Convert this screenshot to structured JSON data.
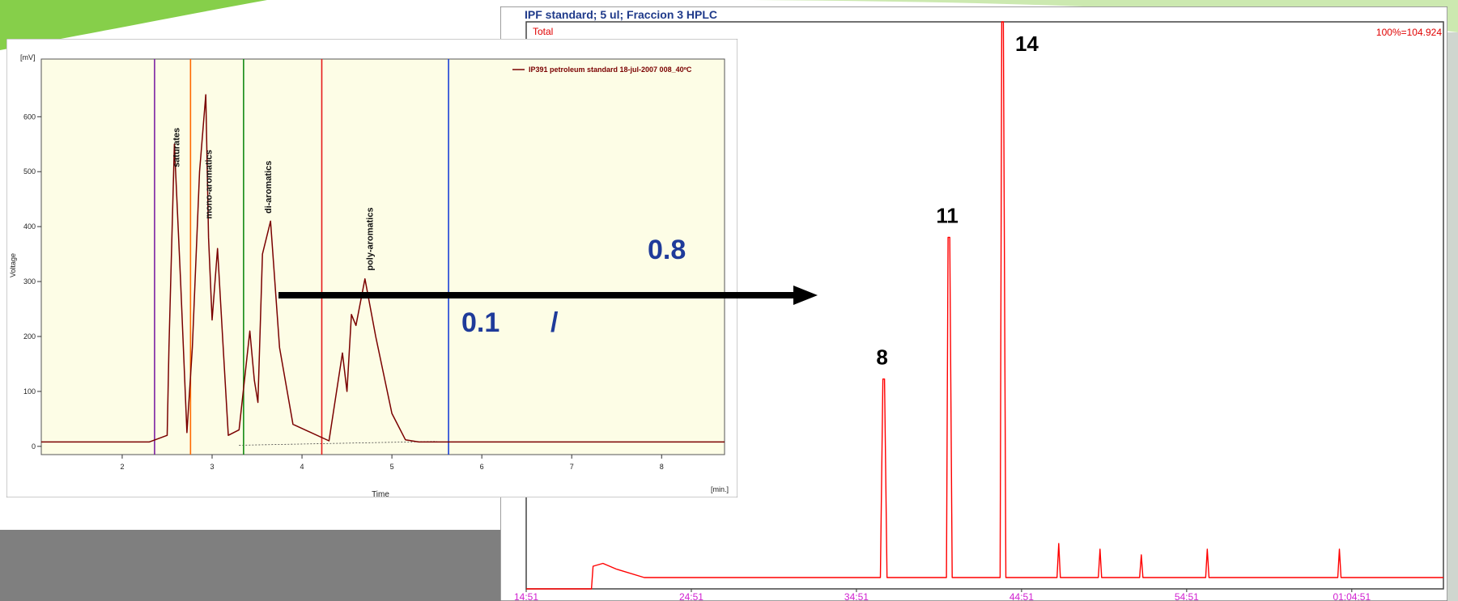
{
  "slide": {
    "overlay_labels": {
      "ratio_top": "0.8",
      "ratio_bottom": "0.1",
      "separator": "/"
    },
    "colors": {
      "ratio_text": "#1f3b9a",
      "arrow": "#000000",
      "accent_green": "#8fd14f"
    }
  },
  "chart_data": [
    {
      "type": "line",
      "title": "",
      "xlabel": "Time",
      "ylabel": "Voltage",
      "x_unit_label": "[min.]",
      "y_unit_label": "[mV]",
      "xlim": [
        1.1,
        8.7
      ],
      "ylim": [
        -15,
        705
      ],
      "x_ticks": [
        "2",
        "3",
        "4",
        "5",
        "6",
        "7",
        "8"
      ],
      "y_ticks": [
        "0",
        "100",
        "200",
        "300",
        "400",
        "500",
        "600"
      ],
      "background": "#fdfde6",
      "legend": {
        "position": "top-right",
        "entries": [
          "IP391 petroleum standard 18-jul-2007 008_40ºC"
        ]
      },
      "series": [
        {
          "name": "IP391 petroleum standard 18-jul-2007 008_40ºC",
          "color": "#7a0000",
          "x": [
            1.1,
            2.3,
            2.5,
            2.52,
            2.58,
            2.65,
            2.72,
            2.78,
            2.86,
            2.93,
            2.96,
            3.0,
            3.06,
            3.12,
            3.18,
            3.3,
            3.42,
            3.47,
            3.51,
            3.56,
            3.65,
            3.75,
            3.9,
            4.3,
            4.45,
            4.5,
            4.55,
            4.6,
            4.7,
            4.82,
            5.0,
            5.15,
            5.3,
            8.7
          ],
          "y": [
            8,
            8,
            20,
            180,
            550,
            300,
            25,
            180,
            500,
            640,
            380,
            230,
            360,
            190,
            20,
            30,
            210,
            120,
            80,
            350,
            410,
            180,
            40,
            10,
            170,
            100,
            240,
            220,
            305,
            200,
            60,
            12,
            8,
            8
          ]
        }
      ],
      "divider_lines": [
        {
          "x": 2.36,
          "color": "#7b1fa2"
        },
        {
          "x": 2.76,
          "color": "#ff6a00"
        },
        {
          "x": 3.35,
          "color": "#138a13"
        },
        {
          "x": 4.22,
          "color": "#e61b1b"
        },
        {
          "x": 5.63,
          "color": "#1a3fd6"
        }
      ],
      "annotations": [
        {
          "text": "saturates",
          "x": 2.6,
          "y": 580
        },
        {
          "text": "mono-aromatics",
          "x": 2.96,
          "y": 540
        },
        {
          "text": "di-aromatics",
          "x": 3.62,
          "y": 520
        },
        {
          "text": "poly-aromatics",
          "x": 4.75,
          "y": 435
        }
      ]
    },
    {
      "type": "line",
      "title": "IPF standard; 5 ul; Fraccion 3 HPLC",
      "series_label": "Total",
      "scale_label": "100%=104.924",
      "x_ticks": [
        "14:51",
        "24:51",
        "34:51",
        "44:51",
        "54:51",
        "01:04:51"
      ],
      "x_tick_minutes": [
        14.85,
        24.85,
        34.85,
        44.85,
        54.85,
        64.85
      ],
      "xlim": [
        14.85,
        70.4
      ],
      "ylim": [
        0,
        100
      ],
      "series": [
        {
          "name": "Total",
          "color": "#ff0000",
          "x": [
            14.85,
            18.8,
            18.9,
            19.5,
            20.3,
            22.0,
            30.0,
            36.3,
            36.45,
            36.55,
            36.7,
            40.3,
            40.4,
            40.5,
            40.65,
            43.55,
            43.65,
            43.75,
            43.9,
            47.0,
            47.1,
            47.2,
            49.5,
            49.6,
            49.7,
            52.0,
            52.1,
            52.2,
            56.0,
            56.1,
            56.2,
            64.0,
            64.1,
            64.2,
            70.4
          ],
          "y": [
            0,
            0,
            4,
            4.5,
            3.5,
            2,
            2,
            2,
            37,
            37,
            2,
            2,
            62,
            62,
            2,
            2,
            100,
            100,
            2,
            2,
            8,
            2,
            2,
            7,
            2,
            2,
            6,
            2,
            2,
            7,
            2,
            2,
            7,
            2,
            2
          ]
        }
      ],
      "annotations": [
        {
          "text": "8",
          "x": 36.5,
          "y": 37
        },
        {
          "text": "11",
          "x": 40.45,
          "y": 62
        },
        {
          "text": "14",
          "x": 43.7,
          "y": 100
        }
      ]
    }
  ]
}
